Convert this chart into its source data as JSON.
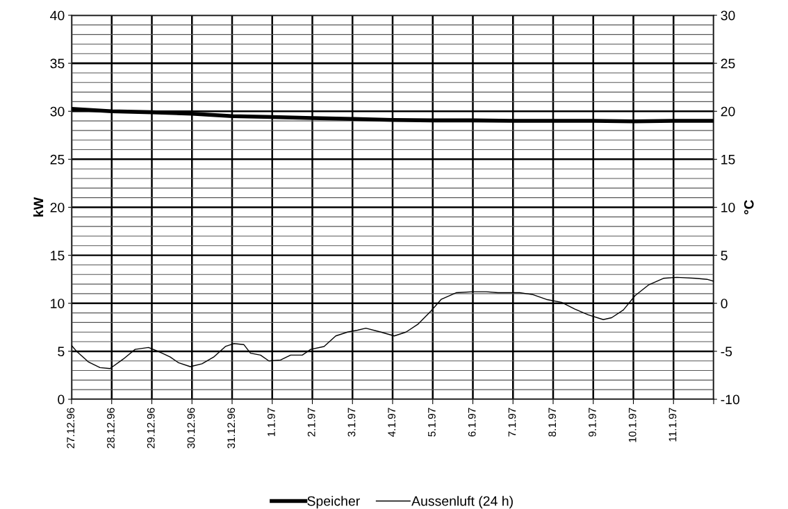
{
  "chart_data": {
    "type": "line",
    "xlim": [
      "1996-12-27",
      "1997-01-12"
    ],
    "xticks": [
      {
        "value": "1996-12-27",
        "label": "27.12.96"
      },
      {
        "value": "1996-12-28",
        "label": "28.12.96"
      },
      {
        "value": "1996-12-29",
        "label": "29.12.96"
      },
      {
        "value": "1996-12-30",
        "label": "30.12.96"
      },
      {
        "value": "1996-12-31",
        "label": "31.12.96"
      },
      {
        "value": "1997-01-01",
        "label": "1.1.97"
      },
      {
        "value": "1997-01-02",
        "label": "2.1.97"
      },
      {
        "value": "1997-01-03",
        "label": "3.1.97"
      },
      {
        "value": "1997-01-04",
        "label": "4.1.97"
      },
      {
        "value": "1997-01-05",
        "label": "5.1.97"
      },
      {
        "value": "1997-01-06",
        "label": "6.1.97"
      },
      {
        "value": "1997-01-07",
        "label": "7.1.97"
      },
      {
        "value": "1997-01-08",
        "label": "8.1.97"
      },
      {
        "value": "1997-01-09",
        "label": "9.1.97"
      },
      {
        "value": "1997-01-10",
        "label": "10.1.97"
      },
      {
        "value": "1997-01-11",
        "label": "11.1.97"
      },
      {
        "value": "1997-01-12",
        "label": null
      }
    ],
    "ylabel": "kW",
    "y2label": "°C",
    "ylim": [
      0,
      40
    ],
    "yticks": [
      0,
      {
        "value": 1,
        "label": null
      },
      {
        "value": 2,
        "label": null
      },
      {
        "value": 3,
        "label": null
      },
      {
        "value": 4,
        "label": null
      },
      5,
      {
        "value": 6,
        "label": null
      },
      {
        "value": 7,
        "label": null
      },
      {
        "value": 8,
        "label": null
      },
      {
        "value": 9,
        "label": null
      },
      10,
      {
        "value": 11,
        "label": null
      },
      {
        "value": 12,
        "label": null
      },
      {
        "value": 13,
        "label": null
      },
      {
        "value": 14,
        "label": null
      },
      15,
      {
        "value": 16,
        "label": null
      },
      {
        "value": 17,
        "label": null
      },
      {
        "value": 18,
        "label": null
      },
      {
        "value": 19,
        "label": null
      },
      20,
      {
        "value": 21,
        "label": null
      },
      {
        "value": 22,
        "label": null
      },
      {
        "value": 23,
        "label": null
      },
      {
        "value": 24,
        "label": null
      },
      25,
      {
        "value": 26,
        "label": null
      },
      {
        "value": 27,
        "label": null
      },
      {
        "value": 28,
        "label": null
      },
      {
        "value": 29,
        "label": null
      },
      30,
      {
        "value": 31,
        "label": null
      },
      {
        "value": 32,
        "label": null
      },
      {
        "value": 33,
        "label": null
      },
      {
        "value": 34,
        "label": null
      },
      35,
      {
        "value": 36,
        "label": null
      },
      {
        "value": 37,
        "label": null
      },
      {
        "value": 38,
        "label": null
      },
      {
        "value": 39,
        "label": null
      },
      40
    ],
    "y2lim": [
      -10,
      30
    ],
    "y2ticks": [
      -10,
      -5,
      0,
      5,
      10,
      15,
      20,
      25,
      30
    ],
    "grid": true,
    "legend": "bottom",
    "marker": "none",
    "line_style": "solid",
    "series": [
      {
        "name": "Speicher",
        "color": "#000000",
        "x": [
          "1996-12-27",
          "1996-12-28",
          "1996-12-29",
          "1996-12-30",
          "1996-12-31",
          "1997-01-01",
          "1997-01-02",
          "1997-01-03",
          "1997-01-04",
          "1997-01-05",
          "1997-01-06",
          "1997-01-07",
          "1997-01-08",
          "1997-01-09",
          "1997-01-10",
          "1997-01-11",
          "1997-01-12"
        ],
        "values": [
          30.25,
          30.0,
          29.9,
          29.75,
          29.5,
          29.4,
          29.3,
          29.2,
          29.1,
          29.05,
          29.05,
          29.0,
          29.0,
          29.0,
          28.95,
          29.0,
          29.0
        ]
      },
      {
        "name": "Aussenluft (24 h)",
        "color": "#000000",
        "axis": "y2",
        "x": [
          "1996-12-27T00:00",
          "1996-12-27T03:00",
          "1996-12-27T10:00",
          "1996-12-27T17:00",
          "1996-12-27T23:00",
          "1996-12-28T07:00",
          "1996-12-28T14:00",
          "1996-12-28T22:00",
          "1996-12-29T05:00",
          "1996-12-29T11:00",
          "1996-12-29T16:00",
          "1996-12-29T23:00",
          "1996-12-30T06:00",
          "1996-12-30T13:00",
          "1996-12-30T20:00",
          "1996-12-31T01:00",
          "1996-12-31T07:00",
          "1996-12-31T11:00",
          "1996-12-31T17:00",
          "1996-12-31T22:00",
          "1997-01-01T05:00",
          "1997-01-01T11:00",
          "1997-01-01T18:00",
          "1997-01-01T23:00",
          "1997-01-02T07:00",
          "1997-01-02T14:00",
          "1997-01-02T21:00",
          "1997-01-03T03:00",
          "1997-01-03T08:00",
          "1997-01-03T17:00",
          "1997-01-04T01:00",
          "1997-01-04T08:00",
          "1997-01-04T15:00",
          "1997-01-04T23:00",
          "1997-01-05T05:00",
          "1997-01-05T14:00",
          "1997-01-06T00:00",
          "1997-01-06T08:00",
          "1997-01-06T15:00",
          "1997-01-07T04:00",
          "1997-01-07T12:00",
          "1997-01-07T20:00",
          "1997-01-08T05:00",
          "1997-01-08T13:00",
          "1997-01-08T21:00",
          "1997-01-09T06:00",
          "1997-01-09T11:00",
          "1997-01-09T18:00",
          "1997-01-10T01:00",
          "1997-01-10T09:00",
          "1997-01-10T18:00",
          "1997-01-11T02:00",
          "1997-01-11T13:00",
          "1997-01-11T20:00",
          "1997-01-12T00:00"
        ],
        "values": [
          -4.4,
          -5.0,
          -6.1,
          -6.7,
          -6.8,
          -5.8,
          -4.8,
          -4.6,
          -5.1,
          -5.6,
          -6.2,
          -6.6,
          -6.3,
          -5.6,
          -4.5,
          -4.2,
          -4.3,
          -5.2,
          -5.4,
          -6.0,
          -5.9,
          -5.4,
          -5.4,
          -4.8,
          -4.5,
          -3.4,
          -3.0,
          -2.8,
          -2.6,
          -3.0,
          -3.4,
          -3.0,
          -2.2,
          -0.8,
          0.4,
          1.1,
          1.2,
          1.2,
          1.1,
          1.1,
          0.9,
          0.4,
          0.1,
          -0.6,
          -1.2,
          -1.7,
          -1.5,
          -0.7,
          0.8,
          1.9,
          2.6,
          2.7,
          2.6,
          2.5,
          2.3
        ]
      }
    ]
  }
}
